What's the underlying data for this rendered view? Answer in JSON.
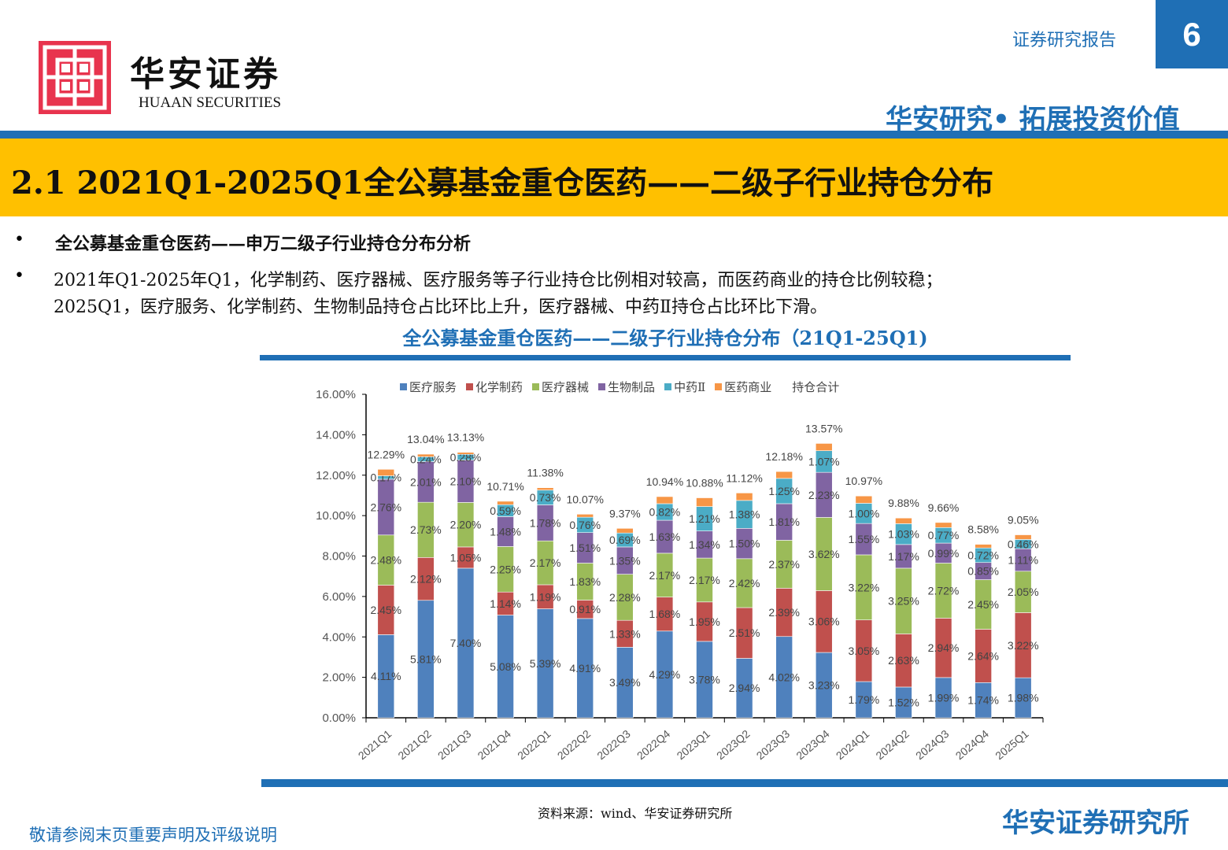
{
  "header": {
    "logo_cn": "华安证券",
    "logo_en": "HUAAN SECURITIES",
    "report_type": "证券研究报告",
    "page_number": "6",
    "tagline": "华安研究• 拓展投资价值"
  },
  "banner_title": "2.1 2021Q1-2025Q1全公募基金重仓医药——二级子行业持仓分布",
  "bullets": [
    {
      "text": "全公募基金重仓医药——申万二级子行业持仓分布分析"
    },
    {
      "text": "2021年Q1-2025年Q1，化学制药、医疗器械、医疗服务等子行业持仓比例相对较高，而医药商业的持仓比例较稳；",
      "text2": "2025Q1，医疗服务、化学制药、生物制品持仓占比环比上升，医疗器械、中药Ⅱ持仓占比环比下滑。"
    }
  ],
  "footer": {
    "source": "资料来源：wind、华安证券研究所",
    "disclaimer": "敬请参阅末页重要声明及评级说明",
    "brand": "华安证券研究所"
  },
  "chart_data": {
    "type": "bar",
    "stacked": true,
    "title": "全公募基金重仓医药——二级子行业持仓分布（21Q1-25Q1)",
    "categories": [
      "2021Q1",
      "2021Q2",
      "2021Q3",
      "2021Q4",
      "2022Q1",
      "2022Q2",
      "2022Q3",
      "2022Q4",
      "2023Q1",
      "2023Q2",
      "2023Q3",
      "2023Q4",
      "2024Q1",
      "2024Q2",
      "2024Q3",
      "2024Q4",
      "2025Q1"
    ],
    "ylim": [
      0,
      16
    ],
    "yticks": [
      "0.00%",
      "2.00%",
      "4.00%",
      "6.00%",
      "8.00%",
      "10.00%",
      "12.00%",
      "14.00%",
      "16.00%"
    ],
    "legend_position": "top",
    "series": [
      {
        "name": "医疗服务",
        "color": "#4F81BD",
        "labeled": true,
        "values": [
          4.11,
          5.81,
          7.4,
          5.08,
          5.39,
          4.91,
          3.49,
          4.29,
          3.78,
          2.94,
          4.02,
          3.23,
          1.79,
          1.52,
          1.99,
          1.74,
          1.98
        ]
      },
      {
        "name": "化学制药",
        "color": "#C0504D",
        "labeled": true,
        "values": [
          2.45,
          2.12,
          1.05,
          1.14,
          1.19,
          0.91,
          1.33,
          1.68,
          1.95,
          2.51,
          2.39,
          3.06,
          3.05,
          2.63,
          2.94,
          2.64,
          3.22
        ]
      },
      {
        "name": "医疗器械",
        "color": "#9BBB59",
        "labeled": true,
        "values": [
          2.48,
          2.73,
          2.2,
          2.25,
          2.17,
          1.83,
          2.28,
          2.17,
          2.17,
          2.42,
          2.37,
          3.62,
          3.22,
          3.25,
          2.72,
          2.45,
          2.05
        ]
      },
      {
        "name": "生物制品",
        "color": "#8064A2",
        "labeled": true,
        "values": [
          2.76,
          2.01,
          2.1,
          1.48,
          1.78,
          1.51,
          1.35,
          1.63,
          1.34,
          1.5,
          1.81,
          2.23,
          1.55,
          1.17,
          0.99,
          0.85,
          1.11
        ]
      },
      {
        "name": "中药Ⅱ",
        "color": "#4BACC6",
        "labeled": true,
        "values": [
          0.17,
          0.24,
          0.28,
          0.59,
          0.73,
          0.76,
          0.69,
          0.82,
          1.21,
          1.38,
          1.25,
          1.07,
          1.0,
          1.03,
          0.77,
          0.72,
          0.46
        ]
      },
      {
        "name": "医药商业",
        "color": "#F79646",
        "labeled": false,
        "values": [
          0.32,
          0.13,
          0.1,
          0.17,
          0.12,
          0.15,
          0.23,
          0.35,
          0.43,
          0.37,
          0.34,
          0.36,
          0.36,
          0.28,
          0.25,
          0.18,
          0.23
        ]
      }
    ],
    "total_name": "持仓合计",
    "totals": [
      12.29,
      13.04,
      13.13,
      10.71,
      11.38,
      10.07,
      9.37,
      10.94,
      10.88,
      11.12,
      12.18,
      13.57,
      10.97,
      9.88,
      9.66,
      8.58,
      9.05
    ]
  }
}
